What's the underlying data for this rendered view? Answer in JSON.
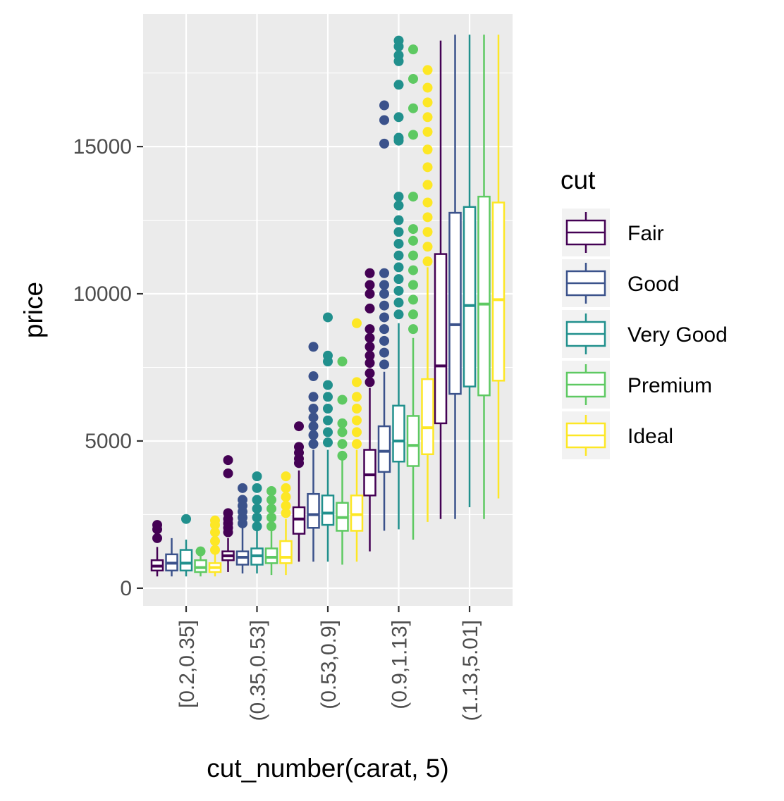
{
  "chart_data": {
    "type": "boxplot",
    "xlabel": "cut_number(carat, 5)",
    "ylabel": "price",
    "ylim": [
      -600,
      19500
    ],
    "yticks": [
      0,
      5000,
      10000,
      15000
    ],
    "ytick_labels": [
      "0",
      "5000",
      "10000",
      "15000"
    ],
    "categories": [
      "[0.2,0.35]",
      "(0.35,0.53]",
      "(0.53,0.9]",
      "(0.9,1.13]",
      "(1.13,5.01]"
    ],
    "legend": {
      "title": "cut",
      "position": "right"
    },
    "background": "#ebebeb",
    "grid": true,
    "series": [
      {
        "name": "Fair",
        "color": "#440154",
        "boxes": [
          {
            "lower": 400,
            "q1": 600,
            "median": 750,
            "q3": 950,
            "upper": 1400,
            "outliers": [
              1700,
              2000,
              2150
            ]
          },
          {
            "lower": 550,
            "q1": 950,
            "median": 1100,
            "q3": 1250,
            "upper": 1700,
            "outliers": [
              1900,
              2050,
              2200,
              2350,
              2550,
              3900,
              4350
            ]
          },
          {
            "lower": 900,
            "q1": 1850,
            "median": 2350,
            "q3": 2750,
            "upper": 4000,
            "outliers": [
              4250,
              4400,
              4600,
              4800,
              5500
            ]
          },
          {
            "lower": 1250,
            "q1": 3150,
            "median": 3850,
            "q3": 4700,
            "upper": 6800,
            "outliers": [
              7000,
              7300,
              7650,
              7900,
              8200,
              8500,
              8800,
              9500,
              10000,
              10300,
              10700
            ]
          },
          {
            "lower": 2350,
            "q1": 5600,
            "median": 7550,
            "q3": 11350,
            "upper": 18600,
            "outliers": []
          }
        ]
      },
      {
        "name": "Good",
        "color": "#3b528b",
        "boxes": [
          {
            "lower": 400,
            "q1": 600,
            "median": 850,
            "q3": 1150,
            "upper": 1700,
            "outliers": []
          },
          {
            "lower": 500,
            "q1": 800,
            "median": 1050,
            "q3": 1250,
            "upper": 2050,
            "outliers": [
              2200,
              2400,
              2600,
              2800,
              3000,
              3400
            ]
          },
          {
            "lower": 900,
            "q1": 2050,
            "median": 2500,
            "q3": 3200,
            "upper": 4700,
            "outliers": [
              4900,
              5200,
              5500,
              5800,
              6100,
              6500,
              7200,
              8200
            ]
          },
          {
            "lower": 1950,
            "q1": 3950,
            "median": 4650,
            "q3": 5500,
            "upper": 7350,
            "outliers": [
              7600,
              8000,
              8400,
              8800,
              9200,
              9600,
              10000,
              10300,
              10700,
              15100,
              15900,
              16400
            ]
          },
          {
            "lower": 2350,
            "q1": 6600,
            "median": 8950,
            "q3": 12750,
            "upper": 18800,
            "outliers": []
          }
        ]
      },
      {
        "name": "Very Good",
        "color": "#21908d",
        "boxes": [
          {
            "lower": 400,
            "q1": 600,
            "median": 850,
            "q3": 1300,
            "upper": 1650,
            "outliers": [
              2350
            ]
          },
          {
            "lower": 500,
            "q1": 800,
            "median": 1100,
            "q3": 1350,
            "upper": 1950,
            "outliers": [
              2100,
              2400,
              2700,
              3000,
              3400,
              3800
            ]
          },
          {
            "lower": 900,
            "q1": 2150,
            "median": 2550,
            "q3": 3150,
            "upper": 4700,
            "outliers": [
              4950,
              5300,
              5700,
              6100,
              6500,
              6900,
              7700,
              7900,
              9200
            ]
          },
          {
            "lower": 2000,
            "q1": 4300,
            "median": 5000,
            "q3": 6200,
            "upper": 9000,
            "outliers": [
              9300,
              9700,
              10100,
              10500,
              10900,
              11300,
              11700,
              12100,
              12500,
              13000,
              13300,
              15200,
              15300,
              16000,
              17100,
              17900,
              18100,
              18400,
              18600
            ]
          },
          {
            "lower": 2750,
            "q1": 6850,
            "median": 9600,
            "q3": 12950,
            "upper": 18800,
            "outliers": []
          }
        ]
      },
      {
        "name": "Premium",
        "color": "#5ec962",
        "boxes": [
          {
            "lower": 400,
            "q1": 550,
            "median": 700,
            "q3": 950,
            "upper": 1150,
            "outliers": [
              1250
            ]
          },
          {
            "lower": 450,
            "q1": 850,
            "median": 1050,
            "q3": 1350,
            "upper": 1950,
            "outliers": [
              2100,
              2400,
              2700,
              3000,
              3300
            ]
          },
          {
            "lower": 800,
            "q1": 1950,
            "median": 2400,
            "q3": 2900,
            "upper": 4350,
            "outliers": [
              4500,
              4900,
              5300,
              5600,
              6400,
              7700
            ]
          },
          {
            "lower": 1650,
            "q1": 4150,
            "median": 4850,
            "q3": 5850,
            "upper": 8500,
            "outliers": [
              8800,
              9300,
              9800,
              10300,
              10800,
              11300,
              11800,
              12200,
              13300,
              15400,
              16300,
              17300,
              18300
            ]
          },
          {
            "lower": 2350,
            "q1": 6550,
            "median": 9650,
            "q3": 13300,
            "upper": 18800,
            "outliers": []
          }
        ]
      },
      {
        "name": "Ideal",
        "color": "#fde725",
        "boxes": [
          {
            "lower": 400,
            "q1": 550,
            "median": 700,
            "q3": 850,
            "upper": 1150,
            "outliers": [
              1300,
              1600,
              1900,
              2150,
              2300
            ]
          },
          {
            "lower": 450,
            "q1": 850,
            "median": 1050,
            "q3": 1600,
            "upper": 2350,
            "outliers": [
              2550,
              2800,
              3100,
              3400,
              3800
            ]
          },
          {
            "lower": 900,
            "q1": 1950,
            "median": 2500,
            "q3": 3150,
            "upper": 4700,
            "outliers": [
              4900,
              5300,
              5700,
              6100,
              6500,
              7000,
              9000
            ]
          },
          {
            "lower": 2250,
            "q1": 4550,
            "median": 5450,
            "q3": 7100,
            "upper": 10900,
            "outliers": [
              11100,
              11600,
              12100,
              12600,
              13100,
              13700,
              14300,
              14900,
              15500,
              16000,
              16500,
              17000,
              17600
            ]
          },
          {
            "lower": 3050,
            "q1": 7050,
            "median": 9800,
            "q3": 13100,
            "upper": 18800,
            "outliers": []
          }
        ]
      }
    ]
  }
}
